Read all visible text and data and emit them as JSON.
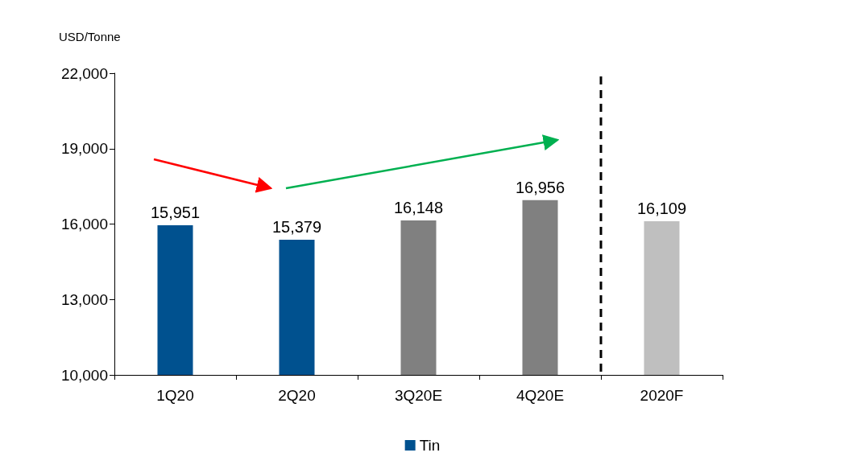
{
  "chart_data": {
    "type": "bar",
    "ylabel": "USD/Tonne",
    "categories": [
      "1Q20",
      "2Q20",
      "3Q20E",
      "4Q20E",
      "2020F"
    ],
    "series": [
      {
        "name": "Tin",
        "color": "#00518f",
        "colors": [
          "#00518f",
          "#00518f",
          "#808080",
          "#808080",
          "#bfbfbf"
        ],
        "values": [
          15951,
          15379,
          16148,
          16956,
          16109
        ],
        "value_labels": [
          "15,951",
          "15,379",
          "16,148",
          "16,956",
          "16,109"
        ]
      }
    ],
    "ylim": [
      10000,
      22000
    ],
    "yticks": [
      {
        "value": 10000,
        "label": "10,000"
      },
      {
        "value": 13000,
        "label": "13,000"
      },
      {
        "value": 16000,
        "label": "16,000"
      },
      {
        "value": 19000,
        "label": "19,000"
      },
      {
        "value": 22000,
        "label": "22,000"
      }
    ],
    "grid": false,
    "legend": "bottom"
  }
}
